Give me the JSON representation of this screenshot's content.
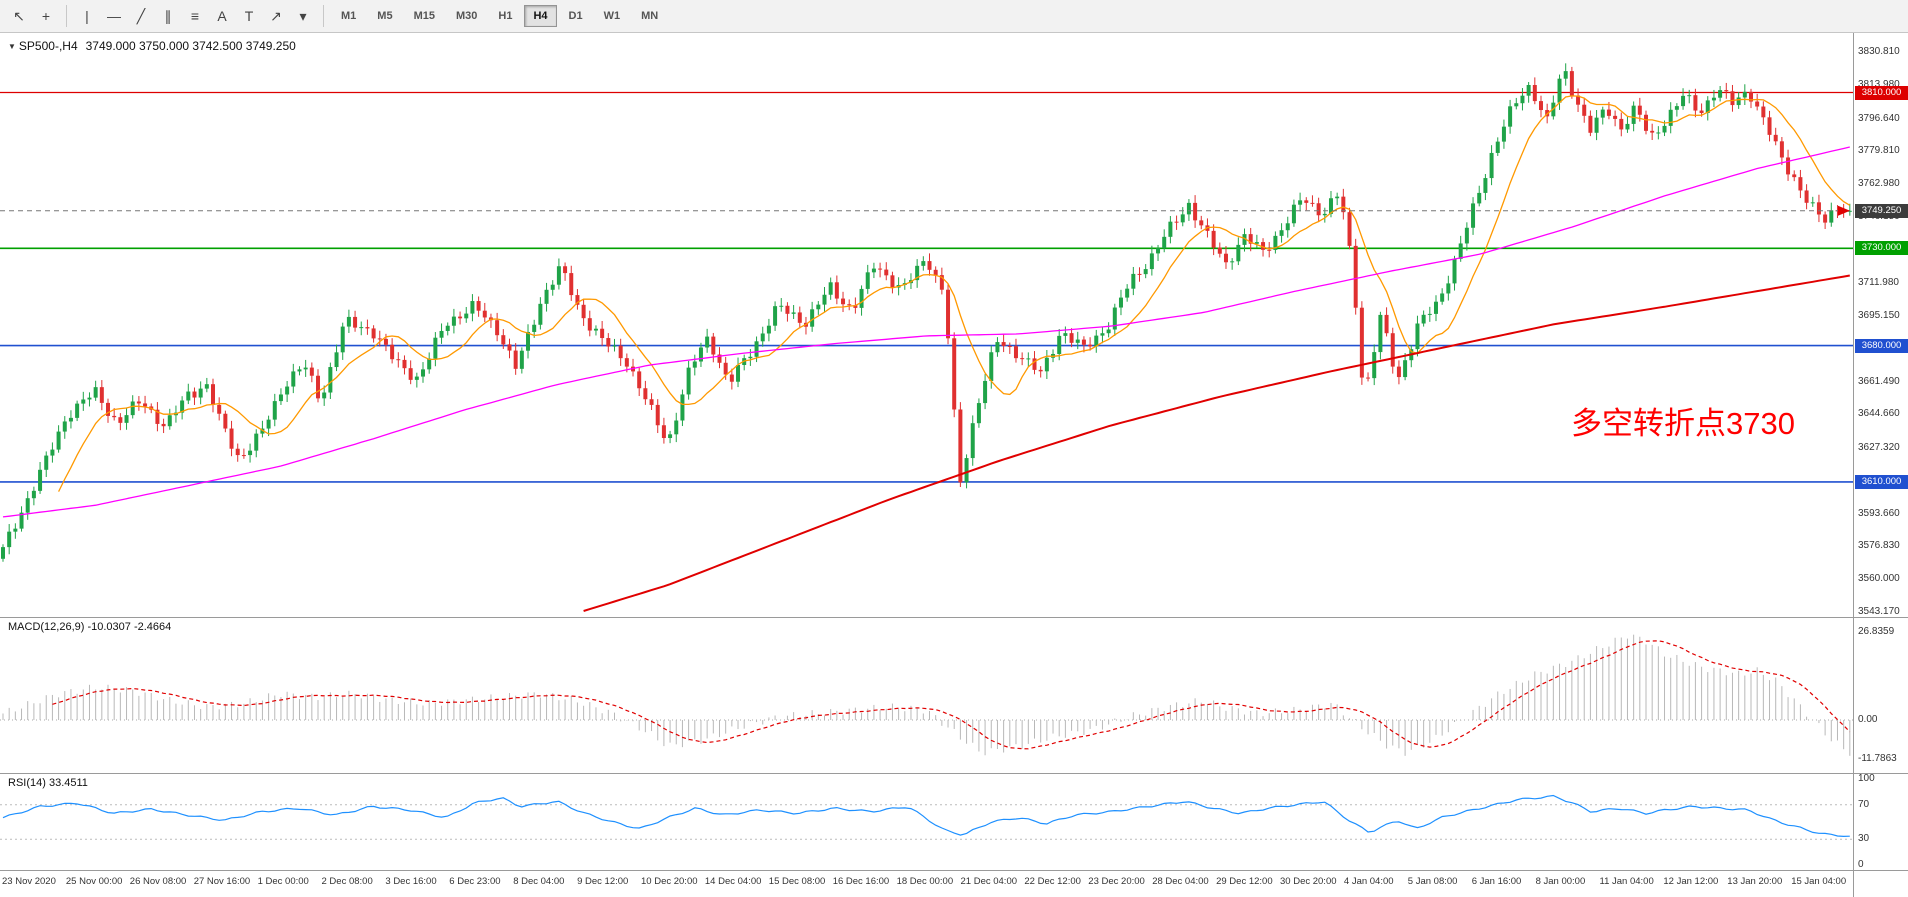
{
  "toolbar": {
    "tools": [
      {
        "name": "cursor-icon",
        "glyph": "↖"
      },
      {
        "name": "crosshair-icon",
        "glyph": "+"
      },
      {
        "type": "sep"
      },
      {
        "name": "vertical-line-icon",
        "glyph": "|"
      },
      {
        "name": "horizontal-line-icon",
        "glyph": "—"
      },
      {
        "name": "trendline-icon",
        "glyph": "╱"
      },
      {
        "name": "equidistant-channel-icon",
        "glyph": "∥"
      },
      {
        "name": "fibonacci-icon",
        "glyph": "≡"
      },
      {
        "name": "text-icon",
        "glyph": "A"
      },
      {
        "name": "text-label-icon",
        "glyph": "T"
      },
      {
        "name": "arrows-icon",
        "glyph": "↗"
      },
      {
        "name": "dropdown-caret-icon",
        "glyph": "▾"
      },
      {
        "type": "sep"
      }
    ],
    "timeframes": [
      {
        "label": "M1",
        "active": false
      },
      {
        "label": "M5",
        "active": false
      },
      {
        "label": "M15",
        "active": false
      },
      {
        "label": "M30",
        "active": false
      },
      {
        "label": "H1",
        "active": false
      },
      {
        "label": "H4",
        "active": true
      },
      {
        "label": "D1",
        "active": false
      },
      {
        "label": "W1",
        "active": false
      },
      {
        "label": "MN",
        "active": false
      }
    ]
  },
  "chart": {
    "symbol": "SP500-,H4",
    "ohlc": "3749.000 3750.000 3742.500 3749.250",
    "annotation": {
      "text": "多空转折点3730",
      "color": "#ff0000"
    },
    "current_price": {
      "value": 3749.25,
      "label": "3749.250"
    },
    "hlines": [
      {
        "price": 3810,
        "label": "3810.000",
        "color": "#dd0000",
        "width": 1.2
      },
      {
        "price": 3730,
        "label": "3730.000",
        "color": "#00a000",
        "width": 1.6
      },
      {
        "price": 3680,
        "label": "3680.000",
        "color": "#2050d0",
        "width": 1.6
      },
      {
        "price": 3610,
        "label": "3610.000",
        "color": "#2050d0",
        "width": 1.6
      }
    ],
    "price_axis": [
      "3830.810",
      "3813.980",
      "3796.640",
      "3779.810",
      "3762.980",
      "3746.150",
      "3711.980",
      "3695.150",
      "3661.490",
      "3644.660",
      "3627.320",
      "3593.660",
      "3576.830",
      "3560.000",
      "3543.170"
    ]
  },
  "macd": {
    "label": "MACD(12,26,9) -10.0307 -2.4664",
    "axis": [
      "26.8359",
      "0.00",
      "-11.7863"
    ]
  },
  "rsi": {
    "label": "RSI(14) 33.4511",
    "axis": [
      "100",
      "70",
      "30",
      "0"
    ],
    "levels": [
      70,
      30
    ]
  },
  "time_axis": [
    "23 Nov 2020",
    "25 Nov 00:00",
    "26 Nov 08:00",
    "27 Nov 16:00",
    "1 Dec 00:00",
    "2 Dec 08:00",
    "3 Dec 16:00",
    "6 Dec 23:00",
    "8 Dec 04:00",
    "9 Dec 12:00",
    "10 Dec 20:00",
    "14 Dec 04:00",
    "15 Dec 08:00",
    "16 Dec 16:00",
    "18 Dec 00:00",
    "21 Dec 04:00",
    "22 Dec 12:00",
    "23 Dec 20:00",
    "28 Dec 04:00",
    "29 Dec 12:00",
    "30 Dec 20:00",
    "4 Jan 04:00",
    "5 Jan 08:00",
    "6 Jan 16:00",
    "8 Jan 00:00",
    "11 Jan 04:00",
    "12 Jan 12:00",
    "13 Jan 20:00",
    "15 Jan 04:00"
  ],
  "colors": {
    "up": "#1fa348",
    "down": "#e03030",
    "ma_fast": "#ff9900",
    "ma_mid": "#ff00ff",
    "ma_slow": "#e00000",
    "macd_hist": "#b8b8b8",
    "macd_signal": "#e00000",
    "rsi": "#1e90ff",
    "tag_current": "#3c3c3c",
    "separator": "#9a9a9a",
    "price_line": "#777777"
  },
  "chart_data": {
    "type": "candlestick",
    "bars": 300,
    "ylim": [
      3543.17,
      3830.81
    ],
    "close_anchors": [
      [
        0.0,
        3575
      ],
      [
        0.01,
        3595
      ],
      [
        0.022,
        3618
      ],
      [
        0.035,
        3645
      ],
      [
        0.05,
        3656
      ],
      [
        0.062,
        3640
      ],
      [
        0.075,
        3652
      ],
      [
        0.088,
        3638
      ],
      [
        0.1,
        3655
      ],
      [
        0.11,
        3660
      ],
      [
        0.118,
        3640
      ],
      [
        0.128,
        3622
      ],
      [
        0.14,
        3635
      ],
      [
        0.152,
        3660
      ],
      [
        0.163,
        3670
      ],
      [
        0.172,
        3652
      ],
      [
        0.185,
        3692
      ],
      [
        0.2,
        3688
      ],
      [
        0.212,
        3672
      ],
      [
        0.225,
        3663
      ],
      [
        0.24,
        3692
      ],
      [
        0.255,
        3700
      ],
      [
        0.268,
        3688
      ],
      [
        0.278,
        3668
      ],
      [
        0.292,
        3705
      ],
      [
        0.302,
        3720
      ],
      [
        0.312,
        3698
      ],
      [
        0.325,
        3682
      ],
      [
        0.338,
        3672
      ],
      [
        0.35,
        3648
      ],
      [
        0.36,
        3630
      ],
      [
        0.372,
        3668
      ],
      [
        0.382,
        3685
      ],
      [
        0.393,
        3660
      ],
      [
        0.408,
        3682
      ],
      [
        0.42,
        3700
      ],
      [
        0.435,
        3692
      ],
      [
        0.448,
        3710
      ],
      [
        0.46,
        3698
      ],
      [
        0.472,
        3722
      ],
      [
        0.487,
        3708
      ],
      [
        0.5,
        3726
      ],
      [
        0.51,
        3705
      ],
      [
        0.518,
        3608
      ],
      [
        0.527,
        3648
      ],
      [
        0.538,
        3682
      ],
      [
        0.55,
        3676
      ],
      [
        0.562,
        3665
      ],
      [
        0.573,
        3688
      ],
      [
        0.585,
        3678
      ],
      [
        0.598,
        3690
      ],
      [
        0.61,
        3712
      ],
      [
        0.622,
        3726
      ],
      [
        0.632,
        3740
      ],
      [
        0.642,
        3753
      ],
      [
        0.652,
        3736
      ],
      [
        0.662,
        3722
      ],
      [
        0.672,
        3736
      ],
      [
        0.682,
        3728
      ],
      [
        0.694,
        3742
      ],
      [
        0.704,
        3756
      ],
      [
        0.714,
        3748
      ],
      [
        0.724,
        3758
      ],
      [
        0.731,
        3718
      ],
      [
        0.737,
        3652
      ],
      [
        0.746,
        3695
      ],
      [
        0.755,
        3662
      ],
      [
        0.766,
        3690
      ],
      [
        0.777,
        3702
      ],
      [
        0.787,
        3726
      ],
      [
        0.798,
        3755
      ],
      [
        0.808,
        3784
      ],
      [
        0.818,
        3803
      ],
      [
        0.827,
        3814
      ],
      [
        0.836,
        3795
      ],
      [
        0.845,
        3822
      ],
      [
        0.852,
        3806
      ],
      [
        0.86,
        3790
      ],
      [
        0.868,
        3802
      ],
      [
        0.876,
        3792
      ],
      [
        0.884,
        3802
      ],
      [
        0.892,
        3786
      ],
      [
        0.9,
        3796
      ],
      [
        0.91,
        3808
      ],
      [
        0.919,
        3800
      ],
      [
        0.928,
        3812
      ],
      [
        0.937,
        3804
      ],
      [
        0.945,
        3812
      ],
      [
        0.953,
        3796
      ],
      [
        0.962,
        3778
      ],
      [
        0.97,
        3766
      ],
      [
        0.978,
        3752
      ],
      [
        0.986,
        3744
      ],
      [
        0.993,
        3752
      ],
      [
        1.0,
        3749.25
      ]
    ],
    "ma_mid_anchors": [
      [
        0.0,
        3592
      ],
      [
        0.05,
        3598
      ],
      [
        0.1,
        3608
      ],
      [
        0.15,
        3618
      ],
      [
        0.2,
        3632
      ],
      [
        0.25,
        3647
      ],
      [
        0.3,
        3660
      ],
      [
        0.35,
        3670
      ],
      [
        0.4,
        3676
      ],
      [
        0.45,
        3681
      ],
      [
        0.5,
        3685
      ],
      [
        0.55,
        3686
      ],
      [
        0.6,
        3690
      ],
      [
        0.65,
        3697
      ],
      [
        0.7,
        3708
      ],
      [
        0.75,
        3718
      ],
      [
        0.8,
        3727
      ],
      [
        0.85,
        3741
      ],
      [
        0.9,
        3757
      ],
      [
        0.95,
        3771
      ],
      [
        1.0,
        3782
      ]
    ],
    "ma_slow_anchors": [
      [
        0.312,
        3543
      ],
      [
        0.36,
        3557
      ],
      [
        0.42,
        3579
      ],
      [
        0.48,
        3601
      ],
      [
        0.54,
        3621
      ],
      [
        0.6,
        3639
      ],
      [
        0.66,
        3654
      ],
      [
        0.72,
        3667
      ],
      [
        0.78,
        3679
      ],
      [
        0.84,
        3691
      ],
      [
        0.9,
        3700
      ],
      [
        0.95,
        3708
      ],
      [
        1.0,
        3716
      ]
    ],
    "macd_anchors": [
      [
        0.0,
        2
      ],
      [
        0.03,
        8
      ],
      [
        0.05,
        10
      ],
      [
        0.07,
        9
      ],
      [
        0.09,
        6
      ],
      [
        0.11,
        4
      ],
      [
        0.13,
        5
      ],
      [
        0.15,
        8
      ],
      [
        0.17,
        7
      ],
      [
        0.19,
        8
      ],
      [
        0.21,
        6
      ],
      [
        0.23,
        5
      ],
      [
        0.25,
        6
      ],
      [
        0.27,
        7
      ],
      [
        0.29,
        8
      ],
      [
        0.31,
        6
      ],
      [
        0.33,
        2
      ],
      [
        0.35,
        -4
      ],
      [
        0.36,
        -8
      ],
      [
        0.38,
        -6
      ],
      [
        0.4,
        -2
      ],
      [
        0.42,
        1
      ],
      [
        0.44,
        2
      ],
      [
        0.46,
        3
      ],
      [
        0.48,
        4
      ],
      [
        0.5,
        3
      ],
      [
        0.52,
        -6
      ],
      [
        0.53,
        -10
      ],
      [
        0.55,
        -8
      ],
      [
        0.57,
        -5
      ],
      [
        0.59,
        -3
      ],
      [
        0.61,
        1
      ],
      [
        0.63,
        4
      ],
      [
        0.65,
        6
      ],
      [
        0.66,
        4
      ],
      [
        0.68,
        2
      ],
      [
        0.7,
        3
      ],
      [
        0.72,
        5
      ],
      [
        0.735,
        -2
      ],
      [
        0.75,
        -8
      ],
      [
        0.76,
        -10
      ],
      [
        0.775,
        -6
      ],
      [
        0.79,
        0
      ],
      [
        0.81,
        8
      ],
      [
        0.83,
        14
      ],
      [
        0.85,
        18
      ],
      [
        0.865,
        22
      ],
      [
        0.88,
        26
      ],
      [
        0.89,
        24
      ],
      [
        0.9,
        20
      ],
      [
        0.92,
        16
      ],
      [
        0.94,
        14
      ],
      [
        0.95,
        15
      ],
      [
        0.96,
        12
      ],
      [
        0.97,
        6
      ],
      [
        0.98,
        0
      ],
      [
        0.99,
        -6
      ],
      [
        1.0,
        -10
      ]
    ],
    "rsi_anchors": [
      [
        0.0,
        55
      ],
      [
        0.02,
        68
      ],
      [
        0.04,
        72
      ],
      [
        0.06,
        60
      ],
      [
        0.08,
        65
      ],
      [
        0.1,
        58
      ],
      [
        0.12,
        52
      ],
      [
        0.14,
        62
      ],
      [
        0.16,
        66
      ],
      [
        0.18,
        58
      ],
      [
        0.2,
        68
      ],
      [
        0.22,
        64
      ],
      [
        0.24,
        55
      ],
      [
        0.255,
        72
      ],
      [
        0.27,
        78
      ],
      [
        0.28,
        68
      ],
      [
        0.3,
        74
      ],
      [
        0.315,
        60
      ],
      [
        0.33,
        50
      ],
      [
        0.345,
        42
      ],
      [
        0.36,
        55
      ],
      [
        0.375,
        66
      ],
      [
        0.39,
        58
      ],
      [
        0.41,
        64
      ],
      [
        0.43,
        60
      ],
      [
        0.45,
        66
      ],
      [
        0.47,
        62
      ],
      [
        0.49,
        68
      ],
      [
        0.51,
        40
      ],
      [
        0.52,
        35
      ],
      [
        0.535,
        50
      ],
      [
        0.55,
        55
      ],
      [
        0.565,
        48
      ],
      [
        0.58,
        58
      ],
      [
        0.6,
        62
      ],
      [
        0.62,
        68
      ],
      [
        0.64,
        74
      ],
      [
        0.655,
        66
      ],
      [
        0.67,
        60
      ],
      [
        0.685,
        66
      ],
      [
        0.7,
        70
      ],
      [
        0.715,
        74
      ],
      [
        0.73,
        50
      ],
      [
        0.74,
        38
      ],
      [
        0.755,
        52
      ],
      [
        0.765,
        42
      ],
      [
        0.78,
        56
      ],
      [
        0.8,
        66
      ],
      [
        0.82,
        76
      ],
      [
        0.84,
        80
      ],
      [
        0.85,
        72
      ],
      [
        0.86,
        62
      ],
      [
        0.875,
        66
      ],
      [
        0.89,
        60
      ],
      [
        0.9,
        64
      ],
      [
        0.915,
        68
      ],
      [
        0.93,
        66
      ],
      [
        0.945,
        64
      ],
      [
        0.955,
        55
      ],
      [
        0.965,
        48
      ],
      [
        0.975,
        42
      ],
      [
        0.985,
        36
      ],
      [
        1.0,
        33.45
      ]
    ]
  }
}
